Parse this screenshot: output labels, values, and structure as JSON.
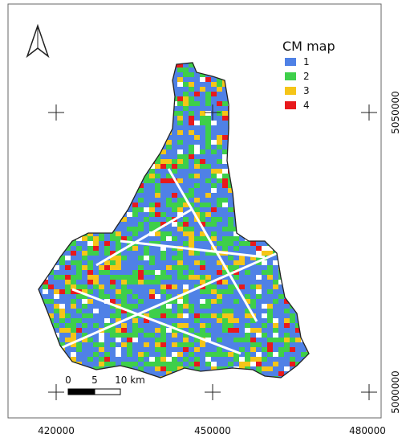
{
  "legend": {
    "title": "CM map",
    "items": [
      {
        "label": "1",
        "color": "#4f81e6"
      },
      {
        "label": "2",
        "color": "#3ecf4a"
      },
      {
        "label": "3",
        "color": "#f5c518"
      },
      {
        "label": "4",
        "color": "#e8191c"
      }
    ]
  },
  "x_axis_labels": [
    "420000",
    "450000",
    "480000"
  ],
  "y_axis_labels": [
    "5050000",
    "5000000"
  ],
  "scale_bar": {
    "labels": [
      "0",
      "5",
      "10 km"
    ]
  }
}
